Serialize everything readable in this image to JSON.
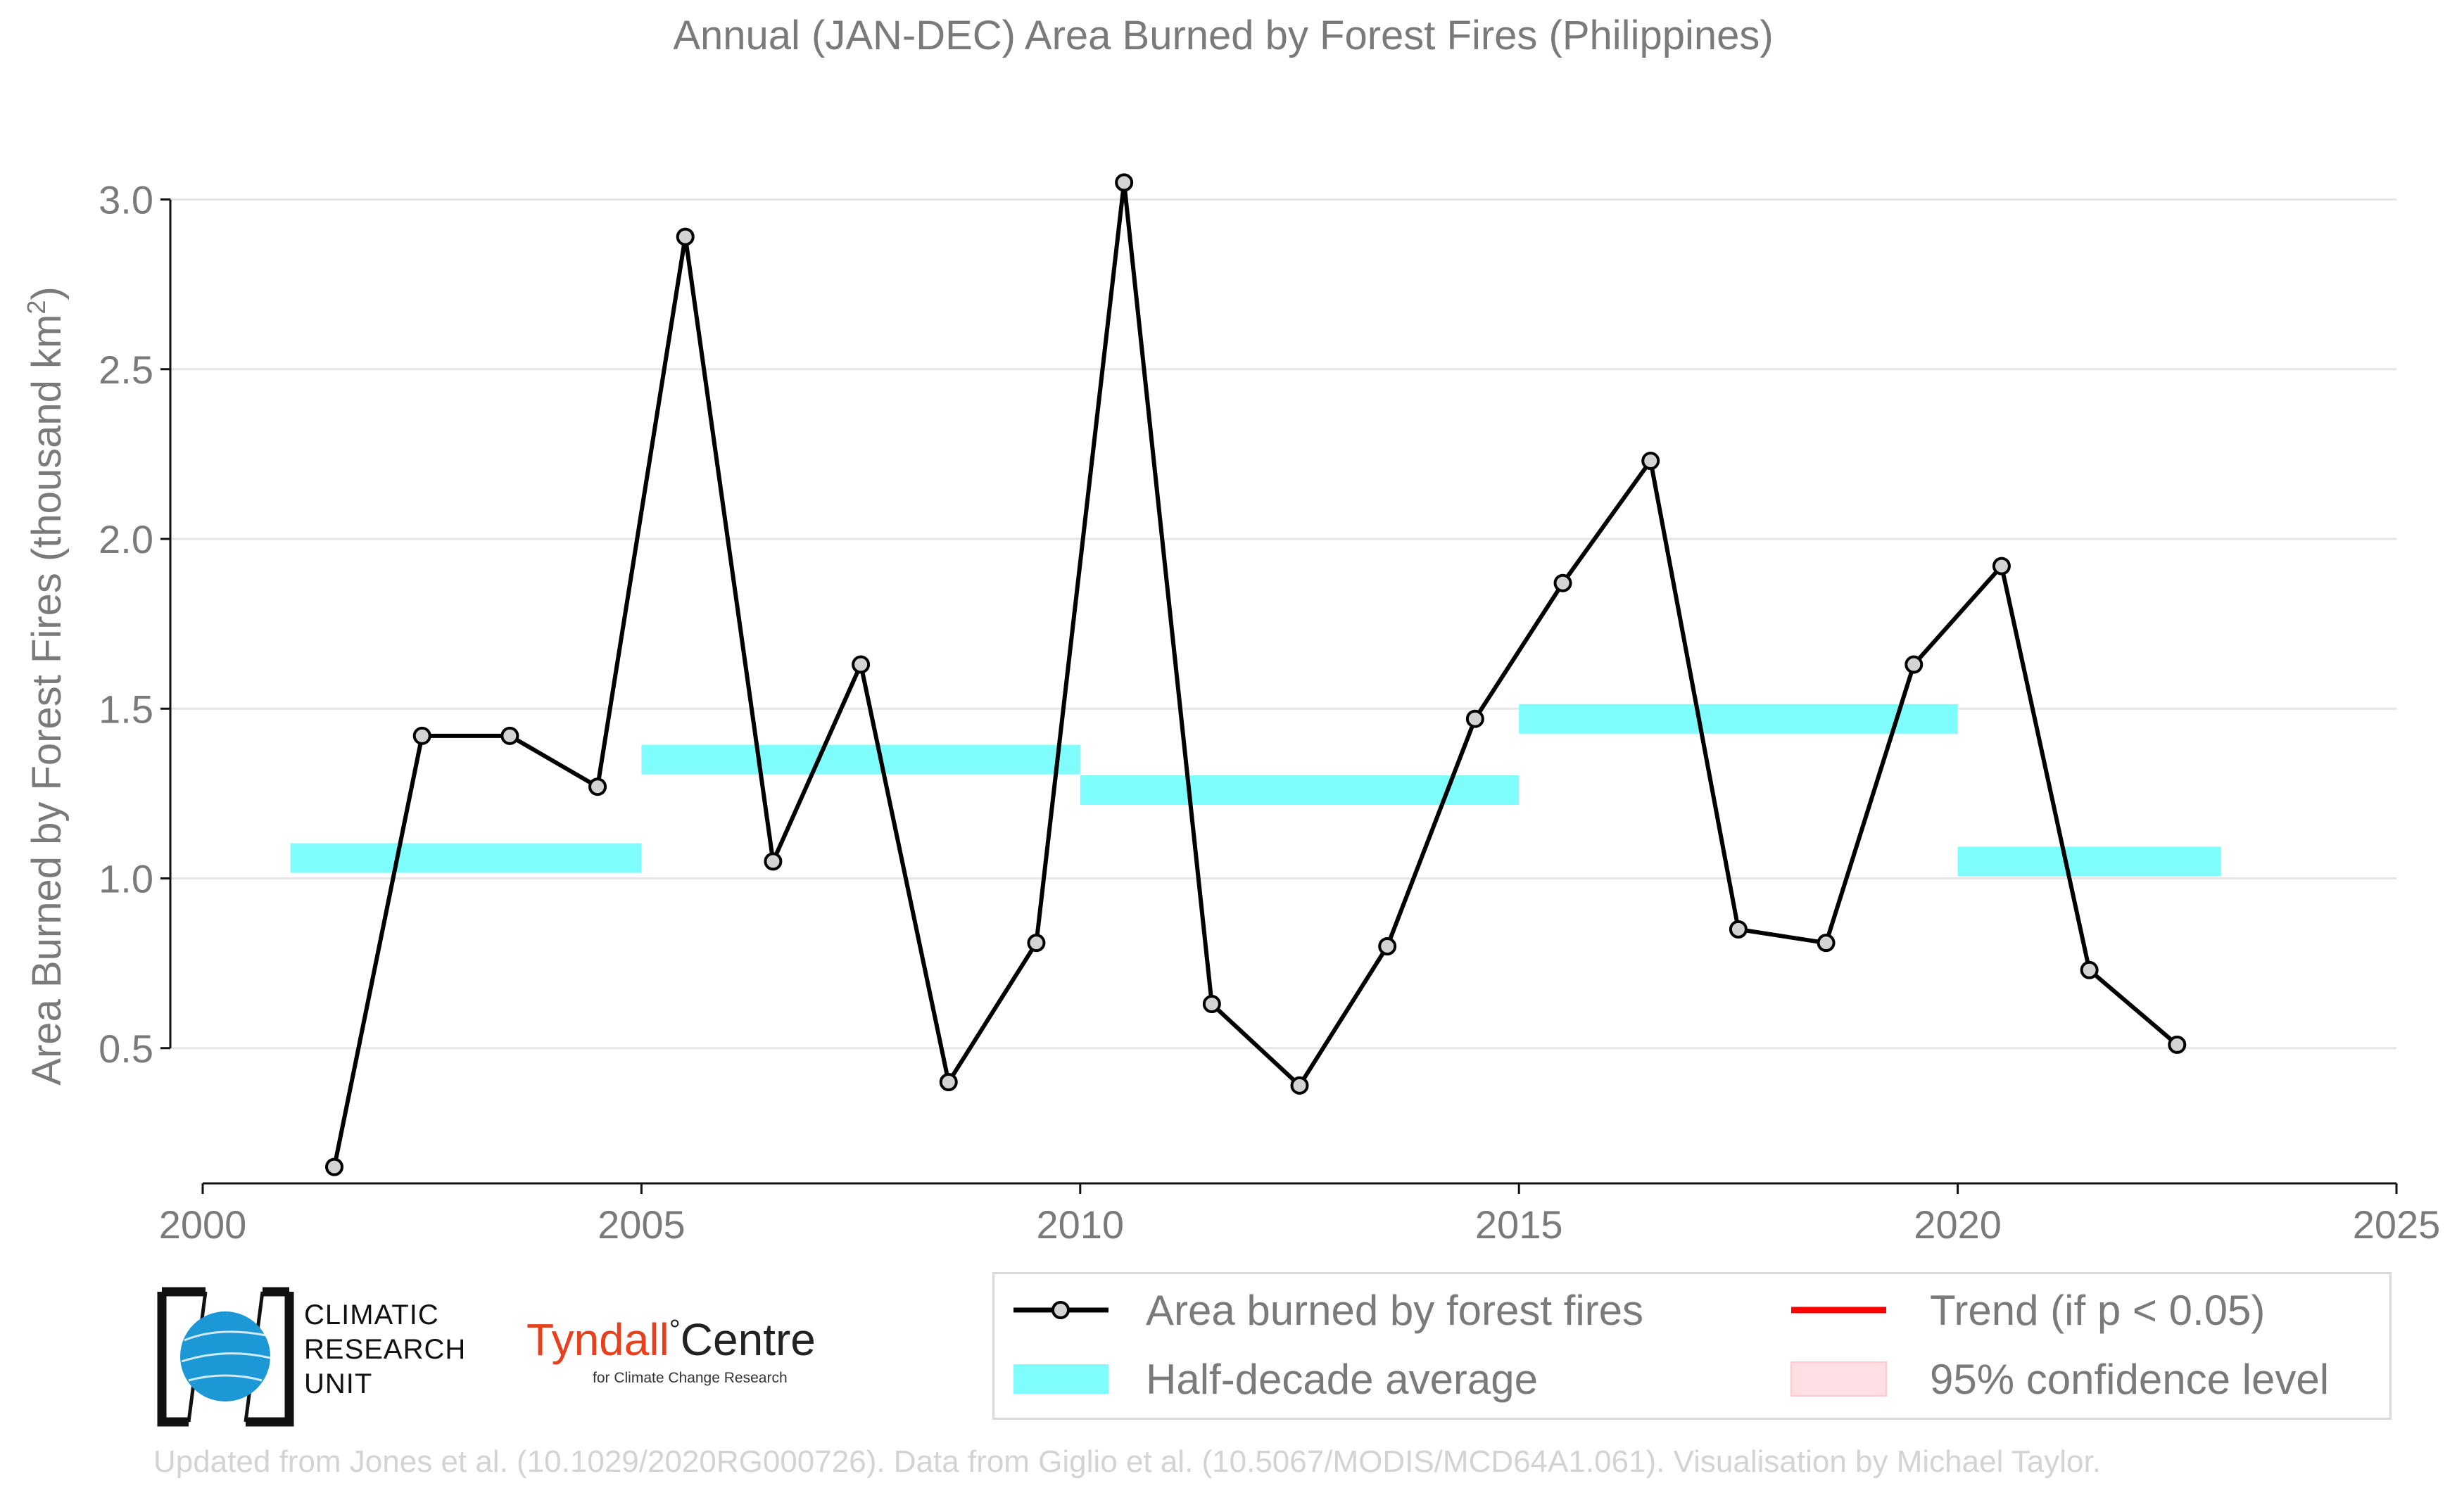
{
  "chart_data": {
    "type": "line",
    "title": "Annual (JAN-DEC) Area Burned by Forest Fires (Philippines)",
    "ylabel": "Area Burned by Forest Fires (thousand km",
    "ylabel_superscript": "2",
    "ylabel_close": ")",
    "xlabel": "",
    "xlim": [
      2000,
      2025
    ],
    "ylim": [
      0,
      3.05
    ],
    "x_ticks": [
      2000,
      2005,
      2010,
      2015,
      2020,
      2025
    ],
    "y_ticks": [
      0.5,
      1.0,
      1.5,
      2.0,
      2.5,
      3.0
    ],
    "y_tick_labels": [
      "0.5",
      "1.0",
      "1.5",
      "2.0",
      "2.5",
      "3.0"
    ],
    "grid": "horizontal",
    "series": [
      {
        "name": "Area burned by forest fires",
        "color": "#000000",
        "marker_fill": "#d3d3d3",
        "x": [
          2001.5,
          2002.5,
          2003.5,
          2004.5,
          2005.5,
          2006.5,
          2007.5,
          2008.5,
          2009.5,
          2010.5,
          2011.5,
          2012.5,
          2013.5,
          2014.5,
          2015.5,
          2016.5,
          2017.5,
          2018.5,
          2019.5,
          2020.5,
          2021.5,
          2022.5
        ],
        "y": [
          0.15,
          1.42,
          1.42,
          1.27,
          2.89,
          1.05,
          1.63,
          0.4,
          0.81,
          3.05,
          0.63,
          0.39,
          0.8,
          1.47,
          1.87,
          2.23,
          0.85,
          0.81,
          1.63,
          1.92,
          0.73,
          0.51
        ]
      }
    ],
    "half_decade_averages": {
      "name": "Half-decade average",
      "color": "#7ffcfc",
      "segments": [
        {
          "x_start": 2001,
          "x_end": 2005,
          "value": 1.06
        },
        {
          "x_start": 2005,
          "x_end": 2010,
          "value": 1.35
        },
        {
          "x_start": 2010,
          "x_end": 2015,
          "value": 1.26
        },
        {
          "x_start": 2015,
          "x_end": 2020,
          "value": 1.47
        },
        {
          "x_start": 2020,
          "x_end": 2023,
          "value": 1.05
        }
      ]
    },
    "legend": {
      "placement": "bottom-right",
      "items": [
        {
          "label": "Area burned by forest fires",
          "kind": "line-marker",
          "color": "#000000"
        },
        {
          "label": "Half-decade average",
          "kind": "band",
          "color": "#7ffcfc"
        },
        {
          "label": "Trend (if p < 0.05)",
          "kind": "line",
          "color": "#ff0000"
        },
        {
          "label": "95% confidence level",
          "kind": "patch",
          "color": "#ffdfe3"
        }
      ]
    }
  },
  "logos": {
    "cru_lines": [
      "CLIMATIC",
      "RESEARCH",
      "UNIT"
    ],
    "tyndall_main": "Tyndall",
    "tyndall_degree": "°",
    "tyndall_centre": "Centre",
    "tyndall_sub": "for Climate Change Research"
  },
  "credit": "Updated from Jones et al. (10.1029/2020RG000726). Data from Giglio et al. (10.5067/MODIS/MCD64A1.061). Visualisation by Michael Taylor.",
  "colors": {
    "text_gray": "#7a7a7a",
    "grid": "#e6e6e6",
    "axis": "#111111",
    "cru_blue": "#1b98d5"
  }
}
